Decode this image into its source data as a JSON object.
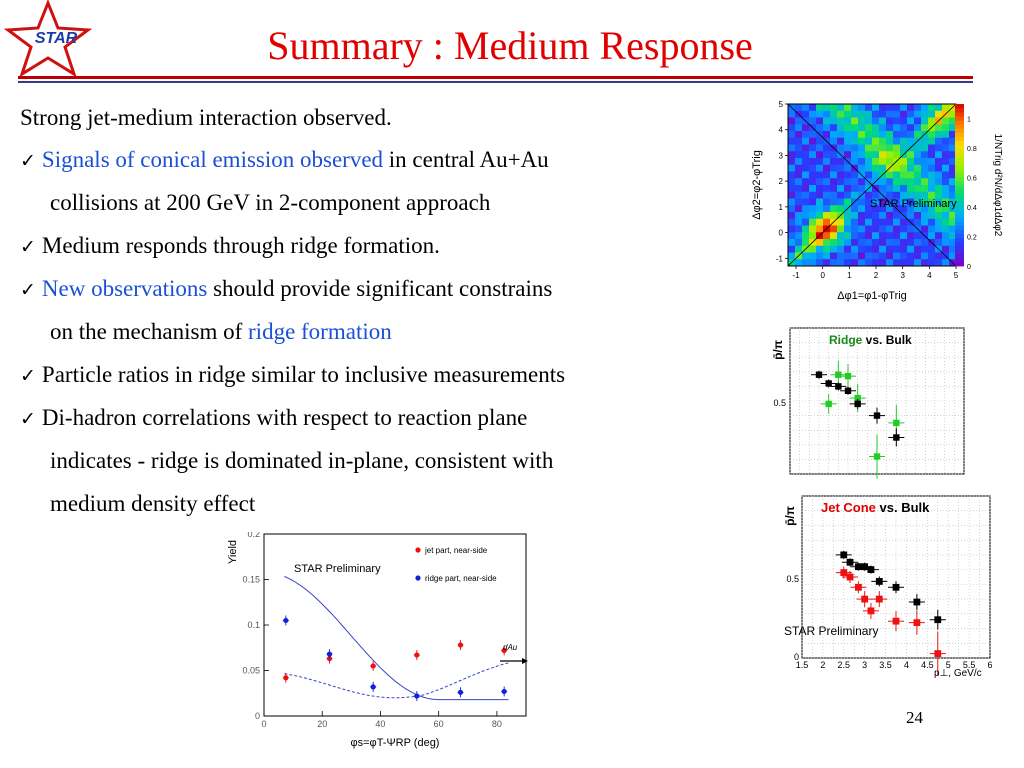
{
  "logo": {
    "text": "STAR"
  },
  "title": "Summary : Medium Response",
  "bullets": {
    "b0": "Strong jet-medium interaction observed.",
    "b1_blue": "Signals of conical emission observed",
    "b1_rest": " in central Au+Au",
    "b1_cont": "collisions at 200 GeV in 2-component approach",
    "b2": "Medium responds through ridge formation.",
    "b3_blue": "New observations",
    "b3_rest": " should provide significant constrains",
    "b3_cont_a": "on the mechanism of ",
    "b3_cont_blue": "ridge formation",
    "b4": "Particle ratios in ridge similar to inclusive measurements",
    "b5": "Di-hadron correlations with respect to reaction plane",
    "b5_cont1": "indicates - ridge is dominated in-plane, consistent with",
    "b5_cont2": "medium density effect"
  },
  "page_number": "24",
  "colors": {
    "title": "#e00000",
    "highlight": "#1a4fd6",
    "rule_red": "#c00000",
    "rule_blue": "#3a3a8a"
  },
  "chart_data": [
    {
      "id": "heatmap",
      "type": "heatmap",
      "xlabel": "Δφ1=φ1-φTrig",
      "ylabel": "Δφ2=φ2-φTrig",
      "zlabel": "1/NTrig d²N/dΔφ1dΔφ2",
      "xticks": [
        "-1",
        "0",
        "1",
        "2",
        "3",
        "4",
        "5"
      ],
      "yticks": [
        "-1",
        "0",
        "1",
        "2",
        "3",
        "4",
        "5"
      ],
      "zticks": [
        "0",
        "0.2",
        "0.4",
        "0.6",
        "0.8",
        "1"
      ],
      "xlim": [
        -1.3,
        5.0
      ],
      "ylim": [
        -1.3,
        5.0
      ],
      "zlim": [
        0,
        1.1
      ],
      "annotation": "STAR Preliminary"
    },
    {
      "id": "ridge",
      "type": "scatter",
      "legend_a": "Ridge",
      "legend_b": " vs. Bulk",
      "ylabel": "p̄/π",
      "ytick": "0.5",
      "ylim": [
        0,
        1.0
      ],
      "xlim": [
        1.5,
        6.0
      ],
      "series": [
        {
          "name": "Ridge",
          "x": [
            2.5,
            2.75,
            3.0,
            3.25,
            3.75,
            4.25
          ],
          "y": [
            0.48,
            0.68,
            0.67,
            0.52,
            0.12,
            0.35
          ]
        },
        {
          "name": "Bulk",
          "x": [
            2.25,
            2.5,
            2.75,
            3.0,
            3.25,
            3.75,
            4.25
          ],
          "y": [
            0.68,
            0.62,
            0.6,
            0.57,
            0.48,
            0.4,
            0.25
          ]
        }
      ]
    },
    {
      "id": "jetcone",
      "type": "scatter",
      "legend_a": "Jet Cone",
      "legend_b": " vs. Bulk",
      "ylabel": "p̄/π",
      "xlabel": "p⊥, GeV/c",
      "xticks": [
        "1.5",
        "2",
        "2.5",
        "3",
        "3.5",
        "4",
        "4.5",
        "5",
        "5.5",
        "6"
      ],
      "ytick": "0.5",
      "yzero": "0",
      "ylim": [
        0,
        1.1
      ],
      "xlim": [
        1.5,
        6.0
      ],
      "annotation": "STAR Preliminary",
      "series": [
        {
          "name": "Jet Cone",
          "x": [
            2.5,
            2.65,
            2.85,
            3.0,
            3.15,
            3.35,
            3.75,
            4.25,
            4.75
          ],
          "y": [
            0.58,
            0.55,
            0.48,
            0.4,
            0.32,
            0.4,
            0.25,
            0.24,
            0.03
          ]
        },
        {
          "name": "Bulk",
          "x": [
            2.5,
            2.65,
            2.85,
            3.0,
            3.15,
            3.35,
            3.75,
            4.25,
            4.75
          ],
          "y": [
            0.7,
            0.65,
            0.62,
            0.62,
            0.6,
            0.52,
            0.48,
            0.38,
            0.26
          ]
        }
      ]
    },
    {
      "id": "yield",
      "type": "scatter",
      "ylabel": "Yield",
      "xlabel": "φs=φT-ΨRP (deg)",
      "xticks": [
        "0",
        "20",
        "40",
        "60",
        "80"
      ],
      "yticks": [
        "0",
        "0.05",
        "0.1",
        "0.15",
        "0.2"
      ],
      "xlim": [
        0,
        90
      ],
      "ylim": [
        0,
        0.2
      ],
      "annotation": "STAR Preliminary",
      "dau_label": "dAu",
      "series": [
        {
          "name": "jet part, near-side",
          "x": [
            7.5,
            22.5,
            37.5,
            52.5,
            67.5,
            82.5
          ],
          "y": [
            0.042,
            0.063,
            0.055,
            0.067,
            0.078,
            0.072
          ]
        },
        {
          "name": "ridge part, near-side",
          "x": [
            7.5,
            22.5,
            37.5,
            52.5,
            67.5,
            82.5
          ],
          "y": [
            0.105,
            0.068,
            0.032,
            0.022,
            0.026,
            0.027
          ]
        }
      ]
    }
  ]
}
